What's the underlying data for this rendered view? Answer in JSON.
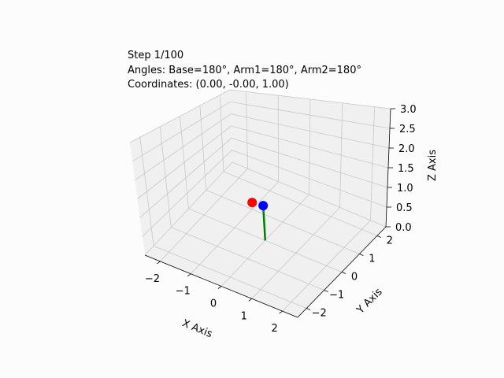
{
  "info": {
    "step": "Step 1/100",
    "angles": "Angles: Base=180°, Arm1=180°, Arm2=180°",
    "coordinates": "Coordinates: (0.00, -0.00, 1.00)"
  },
  "chart_data": {
    "type": "3d-line",
    "xlabel": "X Axis",
    "ylabel": "Y Axis",
    "zlabel": "Z Axis",
    "xlim": [
      -2.5,
      2.5
    ],
    "ylim": [
      -2.5,
      2.5
    ],
    "zlim": [
      0,
      3
    ],
    "xticks": [
      "−2",
      "−1",
      "0",
      "1",
      "2"
    ],
    "yticks": [
      "−2",
      "−1",
      "0",
      "1",
      "2"
    ],
    "zticks": [
      "0.0",
      "0.5",
      "1.0",
      "1.5",
      "2.0",
      "2.5",
      "3.0"
    ],
    "grid": true,
    "series": [
      {
        "points": [
          [
            0,
            0,
            0
          ],
          [
            0,
            0,
            1
          ],
          [
            0,
            0,
            1
          ]
        ],
        "color": "#007f00"
      }
    ],
    "markers": [
      {
        "point": [
          0,
          0,
          1
        ],
        "color": "#ff0000"
      },
      {
        "point": [
          0,
          0,
          1
        ],
        "color": "#0000ff"
      }
    ]
  },
  "colors": {
    "background": "#fcfcfc",
    "grid": "#c8c8c8",
    "pane": "#f0f0f0"
  }
}
